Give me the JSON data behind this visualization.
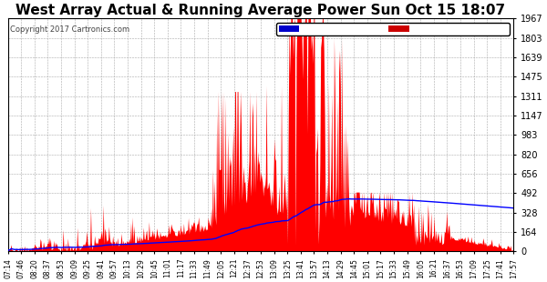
{
  "title": "West Array Actual & Running Average Power Sun Oct 15 18:07",
  "copyright": "Copyright 2017 Cartronics.com",
  "y_max": 1966.7,
  "y_ticks": [
    0.0,
    163.9,
    327.8,
    491.7,
    655.6,
    819.5,
    983.3,
    1147.2,
    1311.1,
    1475.0,
    1638.9,
    1802.8,
    1966.7
  ],
  "x_labels": [
    "07:14",
    "07:46",
    "08:20",
    "08:37",
    "08:53",
    "09:09",
    "09:25",
    "09:41",
    "09:57",
    "10:13",
    "10:29",
    "10:45",
    "11:01",
    "11:17",
    "11:33",
    "11:49",
    "12:05",
    "12:21",
    "12:37",
    "12:53",
    "13:09",
    "13:25",
    "13:41",
    "13:57",
    "14:13",
    "14:29",
    "14:45",
    "15:01",
    "15:17",
    "15:33",
    "15:49",
    "16:05",
    "16:21",
    "16:37",
    "16:53",
    "17:09",
    "17:25",
    "17:41",
    "17:57"
  ],
  "bg_color": "#ffffff",
  "plot_bg_color": "#ffffff",
  "grid_color": "#aaaaaa",
  "title_color": "#000000",
  "title_fontsize": 11,
  "legend_avg_bg": "#0000cc",
  "legend_west_bg": "#cc0000",
  "legend_text_color": "#ffffff",
  "red_color": "#ff0000",
  "blue_color": "#0000ff"
}
